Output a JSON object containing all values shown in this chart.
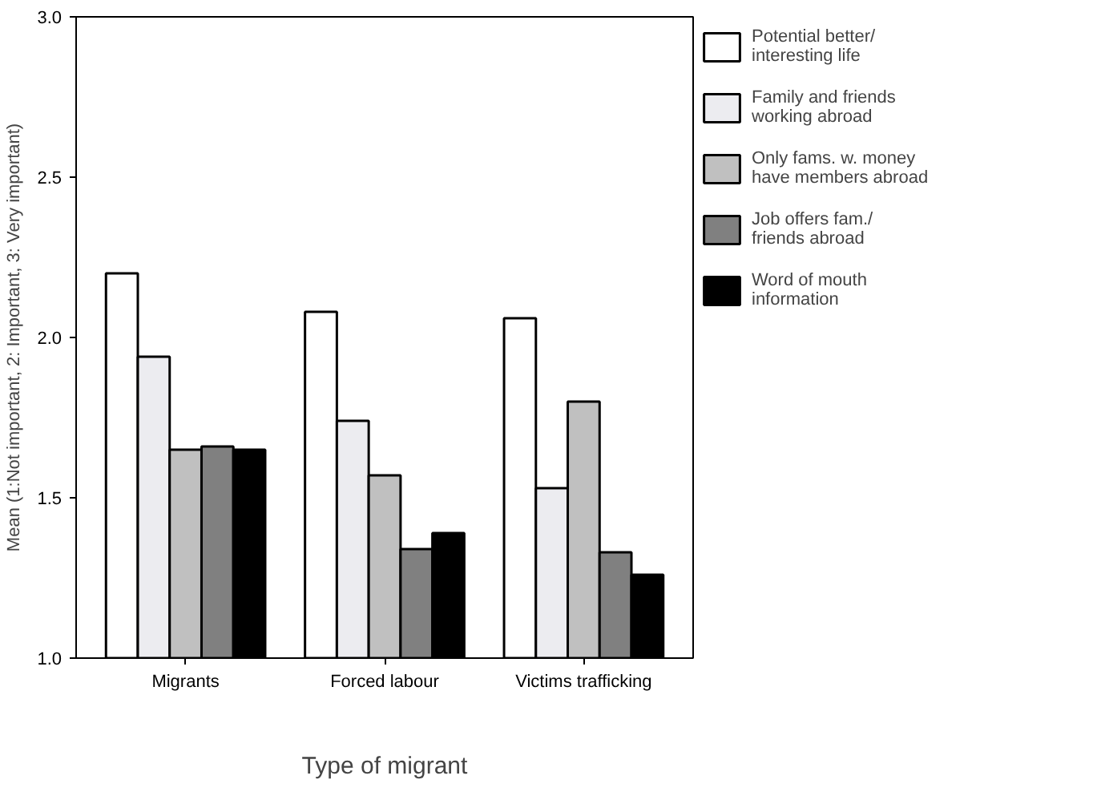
{
  "chart_data": {
    "type": "bar",
    "xlabel": "Type of migrant",
    "ylabel": "Mean (1:Not important, 2: Important, 3: Very important)",
    "categories": [
      "Migrants",
      "Forced labour",
      "Victims trafficking"
    ],
    "series": [
      {
        "name": "Potential better/\ninteresting life",
        "color": "#ffffff",
        "values": [
          2.2,
          2.08,
          2.06
        ]
      },
      {
        "name": "Family and friends\nworking abroad",
        "color": "#ececf0",
        "values": [
          1.94,
          1.74,
          1.53
        ]
      },
      {
        "name": "Only fams. w. money\nhave members abroad",
        "color": "#c0c0c0",
        "values": [
          1.65,
          1.57,
          1.8
        ]
      },
      {
        "name": "Job offers fam./\nfriends abroad",
        "color": "#808080",
        "values": [
          1.66,
          1.34,
          1.33
        ]
      },
      {
        "name": "Word of mouth\ninformation",
        "color": "#000000",
        "values": [
          1.65,
          1.39,
          1.26
        ]
      }
    ],
    "ylim": [
      1.0,
      3.0
    ],
    "yticks": [
      {
        "value": 1.0,
        "label": "1.0"
      },
      {
        "value": 1.5,
        "label": "1.5"
      },
      {
        "value": 2.0,
        "label": "2.0"
      },
      {
        "value": 2.5,
        "label": "2.5"
      },
      {
        "value": 3.0,
        "label": "3.0"
      }
    ],
    "grid": false,
    "legend": "right"
  }
}
